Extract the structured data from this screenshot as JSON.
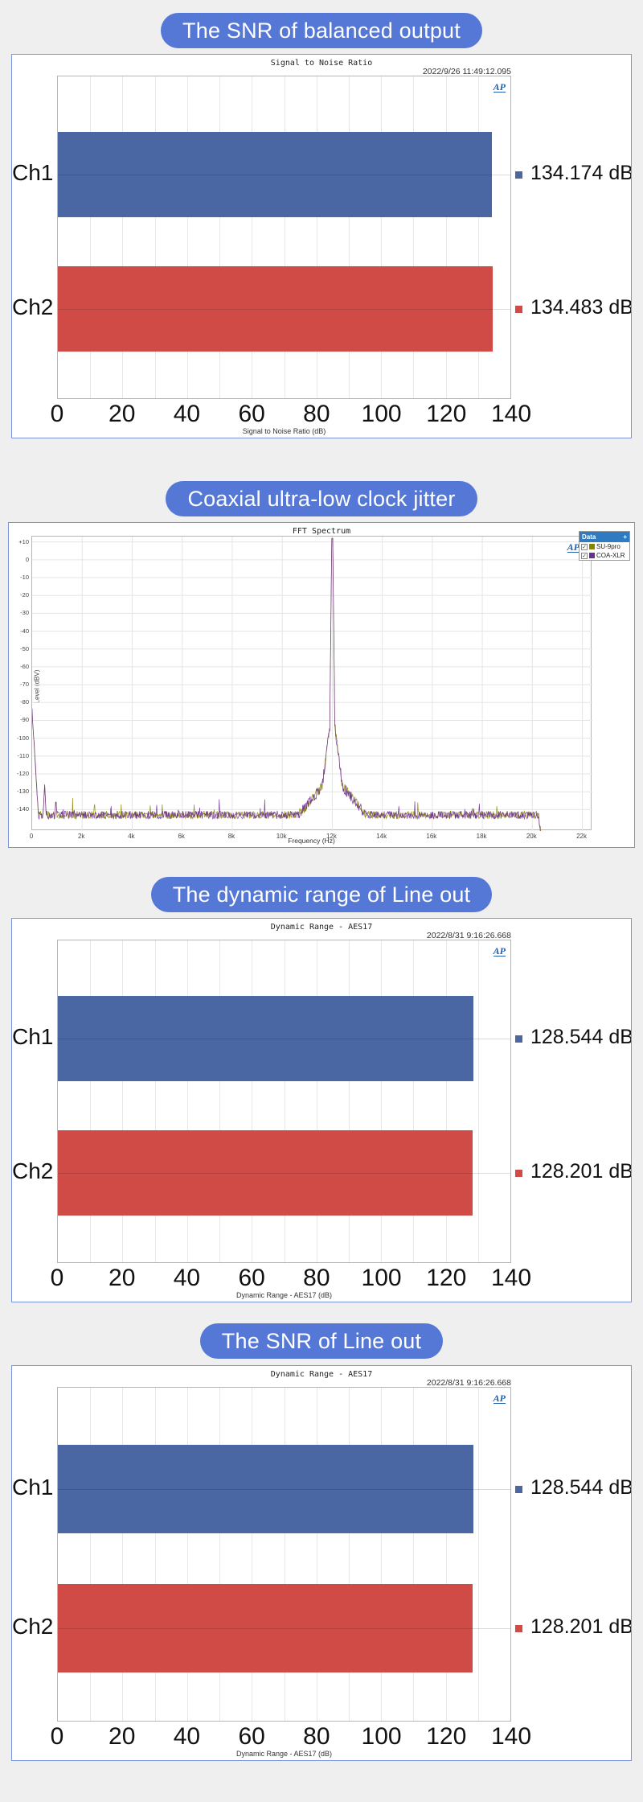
{
  "branding": {
    "ap_logo": "AP"
  },
  "sections": [
    {
      "pill": "The SNR of balanced output"
    },
    {
      "pill": "Coaxial ultra-low clock jitter"
    },
    {
      "pill": "The dynamic range of Line out"
    },
    {
      "pill": "The SNR of Line out"
    }
  ],
  "chart_data": [
    {
      "type": "bar",
      "title": "Signal to Noise Ratio",
      "timestamp": "2022/9/26 11:49:12.095",
      "xlabel": "Signal to Noise Ratio (dB)",
      "categories": [
        "Ch1",
        "Ch2"
      ],
      "values": [
        134.174,
        134.483
      ],
      "value_labels": [
        "134.174 dB",
        "134.483 dB"
      ],
      "xlim": [
        0,
        140
      ],
      "xticks": [
        0,
        20,
        40,
        60,
        80,
        100,
        120,
        140
      ],
      "minor_step": 10,
      "bar_colors": [
        "#4a67a3",
        "#d14b46"
      ],
      "bar_geometry": {
        "centers": [
          0.305,
          0.722
        ],
        "height": 0.266
      }
    },
    {
      "type": "line",
      "subtype": "fft-spectrum",
      "title": "FFT Spectrum",
      "xlabel": "Frequency (Hz)",
      "ylabel": "Level (dBV)",
      "xlim": [
        0,
        22400
      ],
      "ylim": [
        13,
        -152
      ],
      "xticks": [
        [
          0,
          "0"
        ],
        [
          2000,
          "2k"
        ],
        [
          4000,
          "4k"
        ],
        [
          6000,
          "6k"
        ],
        [
          8000,
          "8k"
        ],
        [
          10000,
          "10k"
        ],
        [
          12000,
          "12k"
        ],
        [
          14000,
          "14k"
        ],
        [
          16000,
          "16k"
        ],
        [
          18000,
          "18k"
        ],
        [
          20000,
          "20k"
        ],
        [
          22000,
          "22k"
        ]
      ],
      "yticks": [
        [
          10,
          "+10"
        ],
        [
          0,
          "0"
        ],
        [
          -10,
          "-10"
        ],
        [
          -20,
          "-20"
        ],
        [
          -30,
          "-30"
        ],
        [
          -40,
          "-40"
        ],
        [
          -50,
          "-50"
        ],
        [
          -60,
          "-60"
        ],
        [
          -70,
          "-70"
        ],
        [
          -80,
          "-80"
        ],
        [
          -90,
          "-90"
        ],
        [
          -100,
          "-100"
        ],
        [
          -110,
          "-110"
        ],
        [
          -120,
          "-120"
        ],
        [
          -130,
          "-130"
        ],
        [
          -140,
          "-140"
        ]
      ],
      "legend": {
        "title": "Data",
        "entries": [
          {
            "label": "SU-9pro",
            "color": "#878200",
            "checked": true
          },
          {
            "label": "COA-XLR",
            "color": "#6b2e94",
            "checked": true
          }
        ]
      },
      "features": {
        "noise_floor_dbv": -143,
        "noise_jitter_db": 2.2,
        "main_tone": {
          "freq_hz": 12000,
          "level_dbv": 12
        },
        "dc_spike": {
          "level_dbv": -85,
          "decay_to_floor_hz": 250
        },
        "spurs": [
          {
            "freq_hz": 500,
            "level_dbv": -126
          },
          {
            "freq_hz": 950,
            "level_dbv": -133
          }
        ],
        "rolloff_start_hz": 20250,
        "trace_end_hz": 20560
      }
    },
    {
      "type": "bar",
      "title": "Dynamic Range - AES17",
      "timestamp": "2022/8/31 9:16:26.668",
      "xlabel": "Dynamic Range - AES17 (dB)",
      "categories": [
        "Ch1",
        "Ch2"
      ],
      "values": [
        128.544,
        128.201
      ],
      "value_labels": [
        "128.544 dB",
        "128.201 dB"
      ],
      "xlim": [
        0,
        140
      ],
      "xticks": [
        0,
        20,
        40,
        60,
        80,
        100,
        120,
        140
      ],
      "minor_step": 10,
      "bar_colors": [
        "#4a67a3",
        "#d14b46"
      ],
      "bar_geometry": {
        "centers": [
          0.305,
          0.722
        ],
        "height": 0.266
      }
    },
    {
      "type": "bar",
      "title": "Dynamic Range - AES17",
      "timestamp": "2022/8/31 9:16:26.668",
      "xlabel": "Dynamic Range - AES17 (dB)",
      "categories": [
        "Ch1",
        "Ch2"
      ],
      "values": [
        128.544,
        128.201
      ],
      "value_labels": [
        "128.544 dB",
        "128.201 dB"
      ],
      "xlim": [
        0,
        140
      ],
      "xticks": [
        0,
        20,
        40,
        60,
        80,
        100,
        120,
        140
      ],
      "minor_step": 10,
      "bar_colors": [
        "#4a67a3",
        "#d14b46"
      ],
      "bar_geometry": {
        "centers": [
          0.305,
          0.722
        ],
        "height": 0.266
      }
    }
  ]
}
